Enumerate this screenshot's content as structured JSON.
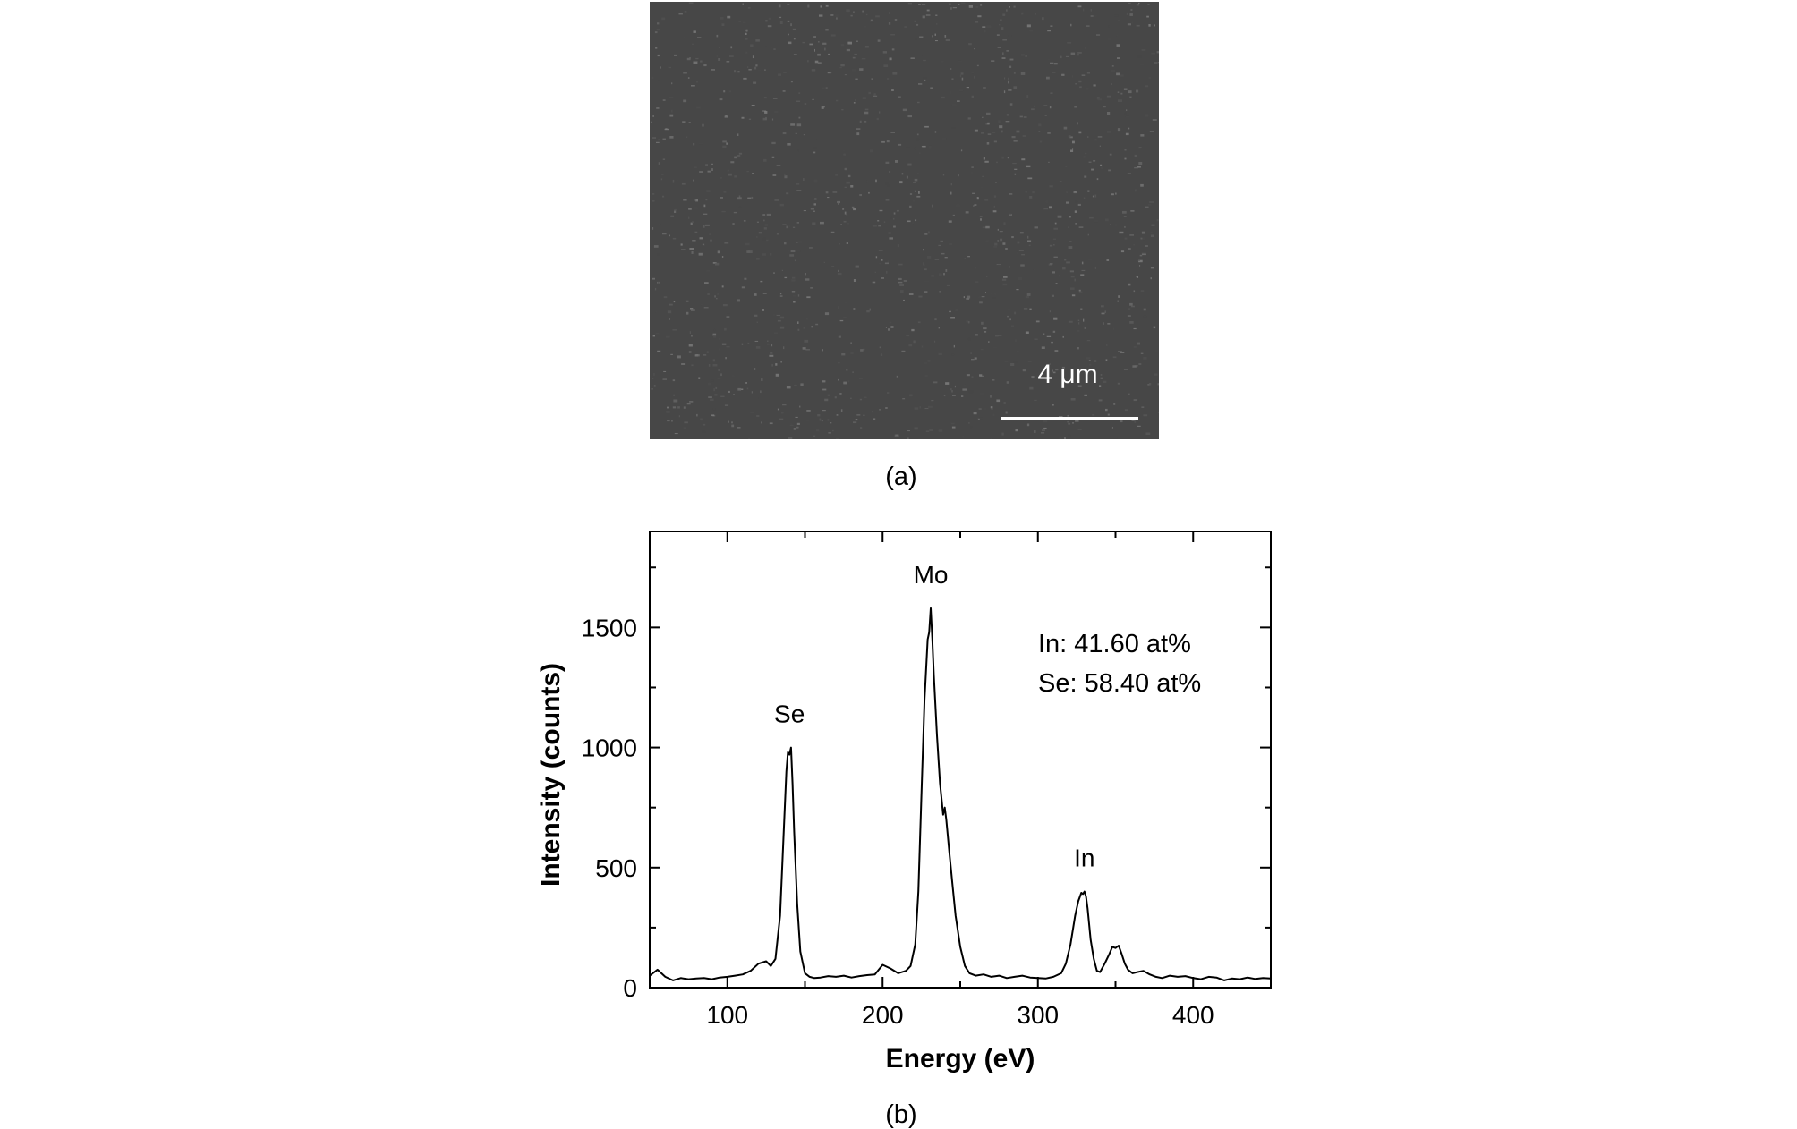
{
  "panel_a": {
    "scale_bar_label": "4 μm",
    "caption": "(a)"
  },
  "panel_b": {
    "caption": "(b)"
  },
  "chart_data": {
    "type": "line",
    "xlabel": "Energy (eV)",
    "ylabel": "Intensity (counts)",
    "xlim": [
      50,
      450
    ],
    "ylim": [
      0,
      1900
    ],
    "xticks": [
      100,
      200,
      300,
      400
    ],
    "yticks": [
      0,
      500,
      1000,
      1500
    ],
    "grid": false,
    "legend": "none",
    "line_color": "#000000",
    "peak_labels": [
      {
        "text": "Se",
        "x": 140,
        "y": 1000
      },
      {
        "text": "Mo",
        "x": 231,
        "y": 1580
      },
      {
        "text": "In",
        "x": 330,
        "y": 400
      }
    ],
    "composition": [
      "In:  41.60 at%",
      "Se: 58.40 at%"
    ],
    "series": [
      {
        "x": [
          50,
          55,
          60,
          65,
          70,
          75,
          80,
          85,
          90,
          95,
          100,
          105,
          110,
          115,
          120,
          125,
          128,
          131,
          134,
          136,
          138,
          139,
          140,
          141,
          142,
          143,
          145,
          147,
          150,
          153,
          156,
          160,
          165,
          170,
          175,
          180,
          185,
          190,
          195,
          200,
          205,
          210,
          215,
          218,
          221,
          223,
          225,
          227,
          229,
          230,
          231,
          232,
          233,
          235,
          237,
          239,
          240,
          241,
          243,
          245,
          247,
          250,
          253,
          256,
          260,
          265,
          270,
          275,
          280,
          285,
          290,
          295,
          300,
          305,
          310,
          315,
          318,
          321,
          324,
          326,
          328,
          329,
          330,
          331,
          332,
          334,
          336,
          338,
          340,
          343,
          346,
          348,
          350,
          352,
          354,
          356,
          358,
          361,
          364,
          368,
          372,
          376,
          380,
          385,
          390,
          395,
          400,
          405,
          410,
          415,
          420,
          425,
          430,
          435,
          440,
          445,
          450
        ],
        "y": [
          50,
          75,
          45,
          30,
          40,
          35,
          38,
          40,
          35,
          42,
          45,
          50,
          55,
          70,
          100,
          110,
          90,
          120,
          300,
          600,
          900,
          980,
          970,
          1000,
          850,
          650,
          350,
          150,
          60,
          45,
          40,
          42,
          48,
          45,
          50,
          42,
          48,
          52,
          55,
          95,
          80,
          60,
          70,
          90,
          180,
          400,
          800,
          1200,
          1450,
          1480,
          1580,
          1450,
          1300,
          1050,
          850,
          720,
          750,
          700,
          560,
          430,
          300,
          170,
          90,
          60,
          50,
          55,
          45,
          50,
          40,
          45,
          50,
          42,
          40,
          38,
          45,
          60,
          100,
          180,
          300,
          360,
          395,
          390,
          400,
          380,
          330,
          200,
          120,
          70,
          65,
          100,
          140,
          170,
          165,
          175,
          140,
          100,
          75,
          60,
          65,
          70,
          55,
          45,
          40,
          50,
          45,
          48,
          40,
          35,
          45,
          42,
          30,
          38,
          35,
          42,
          36,
          40,
          38
        ]
      }
    ]
  }
}
